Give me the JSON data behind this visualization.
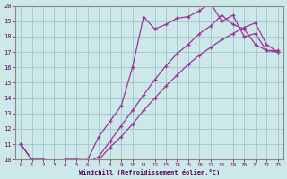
{
  "xlabel": "Windchill (Refroidissement éolien,°C)",
  "xlim": [
    -0.5,
    23.5
  ],
  "ylim": [
    10,
    20
  ],
  "xticks": [
    0,
    1,
    2,
    3,
    4,
    5,
    6,
    7,
    8,
    9,
    10,
    11,
    12,
    13,
    14,
    15,
    16,
    17,
    18,
    19,
    20,
    21,
    22,
    23
  ],
  "yticks": [
    10,
    11,
    12,
    13,
    14,
    15,
    16,
    17,
    18,
    19,
    20
  ],
  "background_color": "#cce8e8",
  "grid_color": "#99bbcc",
  "line_color": "#993399",
  "line1_x": [
    0,
    1,
    2,
    3,
    4,
    5,
    6,
    7,
    8,
    9,
    10,
    11,
    12,
    13,
    14,
    15,
    16,
    17,
    18,
    19,
    20,
    21,
    22,
    23
  ],
  "line1_y": [
    11,
    10,
    10,
    9.8,
    10,
    10,
    10,
    11.5,
    12.5,
    13.5,
    16.0,
    19.3,
    18.5,
    18.8,
    19.2,
    19.3,
    19.7,
    20.2,
    19.0,
    19.4,
    18.0,
    18.2,
    17.1,
    17.1
  ],
  "line2_x": [
    0,
    1,
    2,
    3,
    4,
    5,
    6,
    7,
    8,
    9,
    10,
    11,
    12,
    13,
    14,
    15,
    16,
    17,
    18,
    19,
    20,
    21,
    22,
    23
  ],
  "line2_y": [
    11,
    10,
    10,
    9.8,
    10,
    10,
    9.8,
    10.2,
    11.2,
    12.2,
    13.2,
    14.2,
    15.2,
    16.1,
    16.9,
    17.5,
    18.2,
    18.7,
    19.4,
    18.8,
    18.5,
    17.5,
    17.1,
    17.0
  ],
  "line3_x": [
    0,
    1,
    2,
    3,
    4,
    5,
    6,
    7,
    8,
    9,
    10,
    11,
    12,
    13,
    14,
    15,
    16,
    17,
    18,
    19,
    20,
    21,
    22,
    23
  ],
  "line3_y": [
    11,
    10,
    10,
    9.8,
    10,
    10,
    9.8,
    10.0,
    10.8,
    11.5,
    12.3,
    13.2,
    14.0,
    14.8,
    15.5,
    16.2,
    16.8,
    17.3,
    17.8,
    18.2,
    18.6,
    18.9,
    17.5,
    17.0
  ]
}
